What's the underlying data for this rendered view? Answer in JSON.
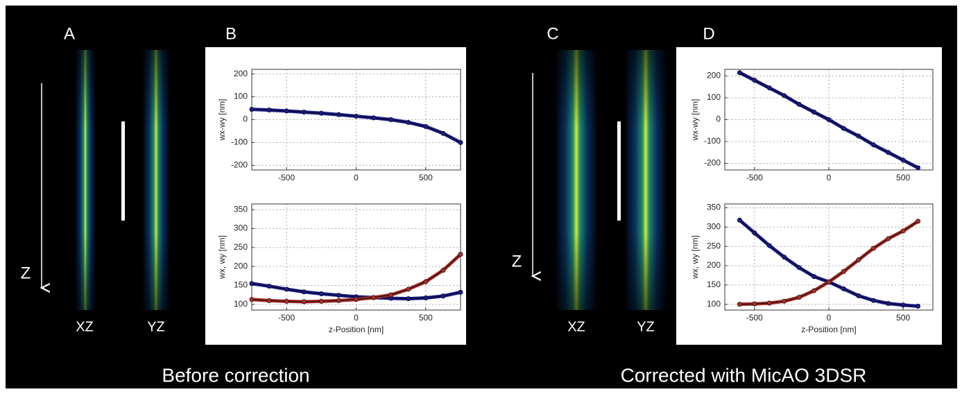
{
  "panel_labels": [
    "A",
    "B",
    "C",
    "D"
  ],
  "image_labels": [
    "XZ",
    "YZ",
    "XZ",
    "YZ"
  ],
  "axis_letters": [
    "Z",
    "Z"
  ],
  "captions": [
    "Before correction",
    "Corrected with MicAO 3DSR"
  ],
  "chart_data": [
    {
      "type": "line",
      "ylabel": "wx-wy [nm]",
      "x": [
        -750,
        -625,
        -500,
        -375,
        -250,
        -125,
        0,
        125,
        250,
        375,
        500,
        625,
        750
      ],
      "series": [
        {
          "color": "#1c1c8a",
          "values": [
            45,
            42,
            38,
            33,
            28,
            22,
            15,
            8,
            0,
            -12,
            -30,
            -60,
            -100
          ]
        }
      ],
      "xlim": [
        -750,
        750
      ],
      "xticks": [
        -500,
        0,
        500
      ],
      "ylim": [
        -220,
        220
      ],
      "yticks": [
        -200,
        -100,
        0,
        100,
        200
      ],
      "grid": true
    },
    {
      "type": "line",
      "ylabel": "wx, wy [nm]",
      "xlabel": "z-Position [nm]",
      "x": [
        -750,
        -625,
        -500,
        -375,
        -250,
        -125,
        0,
        125,
        250,
        375,
        500,
        625,
        750
      ],
      "series": [
        {
          "color": "#1c1c8a",
          "values": [
            155,
            148,
            140,
            133,
            128,
            124,
            120,
            118,
            116,
            115,
            117,
            122,
            132
          ]
        },
        {
          "color": "#a8302a",
          "values": [
            113,
            110,
            108,
            107,
            108,
            110,
            113,
            118,
            125,
            140,
            160,
            190,
            232
          ]
        }
      ],
      "xlim": [
        -750,
        750
      ],
      "xticks": [
        -500,
        0,
        500
      ],
      "ylim": [
        85,
        365
      ],
      "yticks": [
        100,
        150,
        200,
        250,
        300,
        350
      ],
      "grid": true
    },
    {
      "type": "line",
      "ylabel": "wx-wy [nm]",
      "x": [
        -600,
        -500,
        -400,
        -300,
        -200,
        -100,
        0,
        100,
        200,
        300,
        400,
        500,
        600
      ],
      "series": [
        {
          "color": "#1c1c8a",
          "values": [
            215,
            180,
            145,
            110,
            70,
            35,
            0,
            -40,
            -75,
            -115,
            -150,
            -185,
            -220
          ]
        }
      ],
      "xlim": [
        -700,
        700
      ],
      "xticks": [
        -500,
        0,
        500
      ],
      "ylim": [
        -230,
        230
      ],
      "yticks": [
        -200,
        -100,
        0,
        100,
        200
      ],
      "grid": true
    },
    {
      "type": "line",
      "ylabel": "wx, wy [nm]",
      "xlabel": "z-Position [nm]",
      "x": [
        -600,
        -500,
        -400,
        -300,
        -200,
        -100,
        0,
        100,
        200,
        300,
        400,
        500,
        600
      ],
      "series": [
        {
          "color": "#1c1c8a",
          "values": [
            318,
            285,
            252,
            222,
            195,
            172,
            158,
            140,
            122,
            110,
            102,
            98,
            95
          ]
        },
        {
          "color": "#a8302a",
          "values": [
            100,
            101,
            103,
            108,
            118,
            135,
            158,
            185,
            215,
            245,
            270,
            290,
            315
          ]
        }
      ],
      "xlim": [
        -700,
        700
      ],
      "xticks": [
        -500,
        0,
        500
      ],
      "ylim": [
        85,
        360
      ],
      "yticks": [
        100,
        150,
        200,
        250,
        300,
        350
      ],
      "grid": true
    }
  ]
}
